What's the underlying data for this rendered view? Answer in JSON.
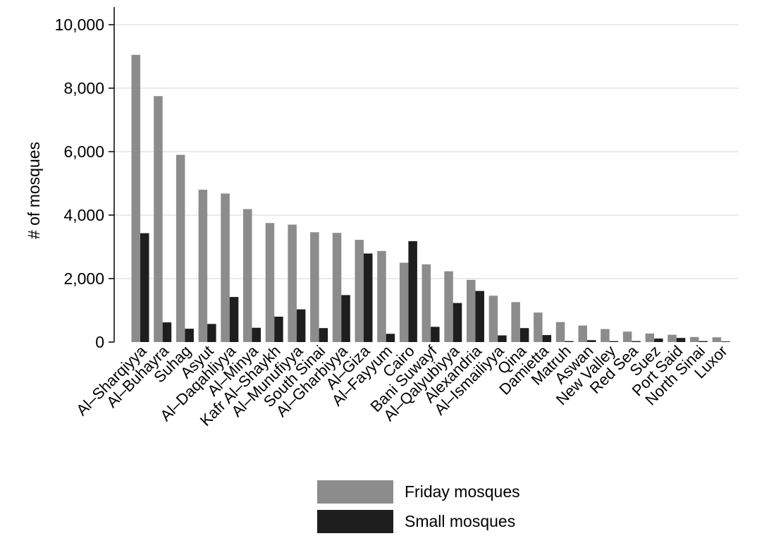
{
  "chart_data": {
    "type": "bar",
    "ylabel": "# of mosques",
    "xlabel": "",
    "ylim": [
      0,
      10000
    ],
    "yticks": [
      0,
      2000,
      4000,
      6000,
      8000,
      10000
    ],
    "ytick_labels": [
      "0",
      "2,000",
      "4,000",
      "6,000",
      "8,000",
      "10,000"
    ],
    "grid": true,
    "legend_position": "bottom",
    "categories": [
      "Al–Sharqiyya",
      "Al–Buhayra",
      "Suhag",
      "Asyut",
      "Al–Daqahliyya",
      "Al–Minya",
      "Kafr Al–Shaykh",
      "Al–Munufiyya",
      "South Sinai",
      "Al–Gharbiyya",
      "Al–Giza",
      "Al–Fayyum",
      "Cairo",
      "Bani Suwayf",
      "Al–Qalyubiyya",
      "Alexandria",
      "Al–Ismailiyya",
      "Qina",
      "Damietta",
      "Matruh",
      "Aswan",
      "New Valley",
      "Red Sea",
      "Suez",
      "Port Said",
      "North Sinai",
      "Luxor"
    ],
    "series": [
      {
        "name": "Friday mosques",
        "color": "#8c8c8c",
        "values": [
          9050,
          7750,
          5900,
          4800,
          4680,
          4190,
          3750,
          3700,
          3460,
          3440,
          3220,
          2870,
          2500,
          2450,
          2230,
          1960,
          1460,
          1260,
          930,
          630,
          520,
          410,
          330,
          270,
          230,
          160,
          150
        ]
      },
      {
        "name": "Small mosques",
        "color": "#1e1e1e",
        "values": [
          3430,
          620,
          420,
          570,
          1420,
          450,
          800,
          1030,
          440,
          1480,
          2790,
          260,
          3180,
          480,
          1230,
          1610,
          210,
          440,
          220,
          30,
          60,
          30,
          30,
          110,
          130,
          30,
          20
        ]
      }
    ]
  }
}
